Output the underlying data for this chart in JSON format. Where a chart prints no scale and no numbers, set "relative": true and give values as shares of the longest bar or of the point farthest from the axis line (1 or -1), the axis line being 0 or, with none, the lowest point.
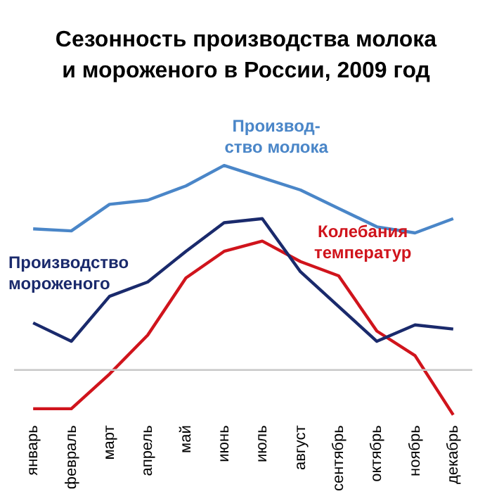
{
  "chart_data": {
    "type": "line",
    "title": "Сезонность производства молока и мороженого в России, 2009 год",
    "relative": true,
    "legend": false,
    "grid": false,
    "marker": "none",
    "categories": [
      "январь",
      "февраль",
      "март",
      "апрель",
      "май",
      "июнь",
      "июль",
      "август",
      "сентябрь",
      "октябрь",
      "ноябрь",
      "декабрь"
    ],
    "series": [
      {
        "name": "Производ-ство молока",
        "color": "#4a86c8",
        "values": [
          0.69,
          0.68,
          0.81,
          0.83,
          0.9,
          1,
          0.94,
          0.88,
          0.79,
          0.7,
          0.67,
          0.74
        ]
      },
      {
        "name": "Производство мороженого",
        "color": "#1a2a6c",
        "values": [
          0.23,
          0.14,
          0.36,
          0.43,
          0.58,
          0.72,
          0.74,
          0.48,
          0.31,
          0.14,
          0.22,
          0.2
        ]
      },
      {
        "name": "Колебания температур",
        "color": "#d0141c",
        "values": [
          -0.19,
          -0.19,
          -0.02,
          0.17,
          0.45,
          0.58,
          0.63,
          0.53,
          0.46,
          0.19,
          0.07,
          -0.22
        ]
      }
    ]
  }
}
